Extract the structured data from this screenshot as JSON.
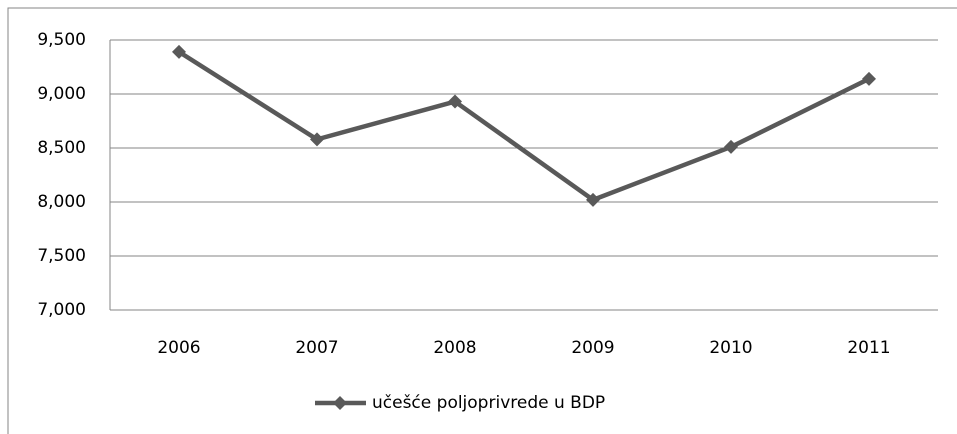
{
  "chart_data": {
    "type": "line",
    "categories": [
      "2006",
      "2007",
      "2008",
      "2009",
      "2010",
      "2011"
    ],
    "series": [
      {
        "name": "učešće poljoprivrede u BDP",
        "color": "#595959",
        "values": [
          9390,
          8580,
          8930,
          8020,
          8510,
          9140
        ]
      }
    ],
    "ylim": [
      7000,
      9500
    ],
    "yticks": [
      {
        "value": 7000,
        "label": "7,000"
      },
      {
        "value": 7500,
        "label": "7,500"
      },
      {
        "value": 8000,
        "label": "8,000"
      },
      {
        "value": 8500,
        "label": "8,500"
      },
      {
        "value": 9000,
        "label": "9,000"
      },
      {
        "value": 9500,
        "label": "9,500"
      }
    ],
    "grid": true,
    "legend": "bottom"
  }
}
